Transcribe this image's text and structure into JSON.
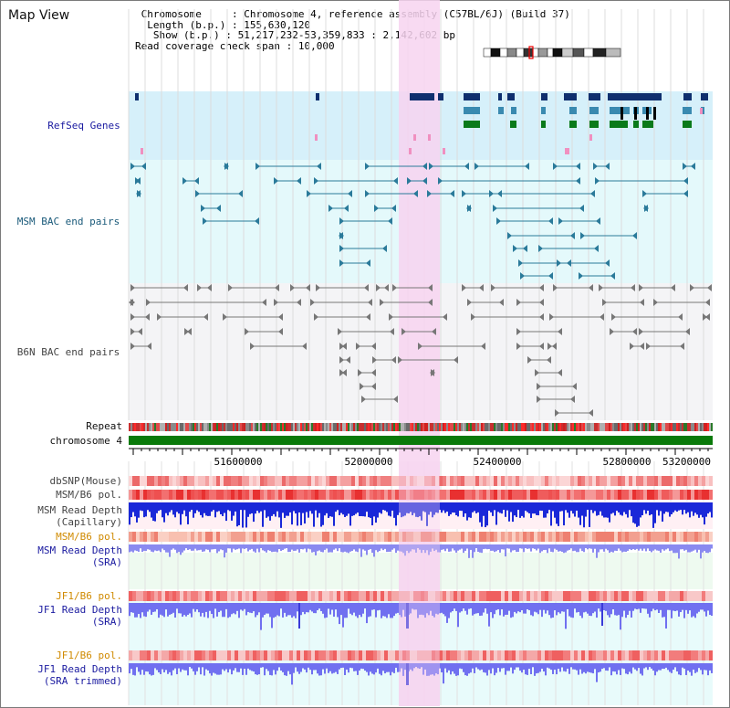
{
  "app": {
    "title": "Map View"
  },
  "info": {
    "chromosome_label": "Chromosome",
    "chromosome_value": "Chromosome 4, reference assembly (C57BL/6J) (Build 37)",
    "length_label": "Length (b.p.)",
    "length_value": "155,630,120",
    "show_label": "Show (b.p.)",
    "show_value": "51,217,232-53,359,833 : 2,142,602 bp",
    "coverage_label": "Read coverage check span",
    "coverage_value": "10,000"
  },
  "tracks": {
    "refseq": "RefSeq Genes",
    "msm_bac": "MSM BAC end pairs",
    "b6n_bac": "B6N BAC end pairs",
    "repeat": "Repeat",
    "chromosome": "chromosome 4",
    "dbsnp": "dbSNP(Mouse)",
    "msm_b6_pol_1": "MSM/B6 pol.",
    "msm_depth_cap": "MSM Read Depth\n(Capillary)",
    "msm_b6_pol_2": "MSM/B6 pol.",
    "msm_depth_sra": "MSM Read Depth\n(SRA)",
    "jf1_b6_pol_1": "JF1/B6 pol.",
    "jf1_depth_sra": "JF1 Read Depth\n(SRA)",
    "jf1_b6_pol_2": "JF1/B6 pol.",
    "jf1_depth_trim": "JF1 Read Depth\n(SRA trimmed)"
  },
  "axis": {
    "ticks": [
      "51600000",
      "52000000",
      "52400000",
      "52800000",
      "53200000"
    ]
  },
  "colors": {
    "refseq_bg": "#d6f0fa",
    "msm_bg": "#e4f9fb",
    "b6n_bg": "#f4f4f6",
    "highlight": "#f7d3f0",
    "gene_dark": "#0f2f6e",
    "gene_mid": "#3a8ab0",
    "gene_green": "#0a7a1a",
    "msm_line": "#2a7a9a",
    "b6n_line": "#777777",
    "chrom_bar": "#0a7a0a",
    "label_blue": "#1a1aa0",
    "label_orange": "#d08a00",
    "label_teal": "#1a5a7a"
  }
}
